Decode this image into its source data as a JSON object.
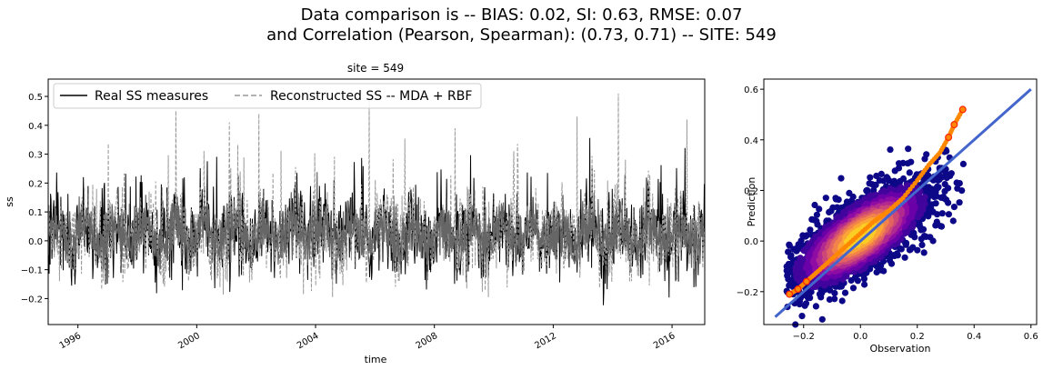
{
  "figure": {
    "suptitle_line1": "Data comparison is -- BIAS: 0.02, SI: 0.63, RMSE: 0.07",
    "suptitle_line2": "and Correlation (Pearson, Spearman): (0.73, 0.71) -- SITE: 549"
  },
  "chart_data": [
    {
      "type": "line",
      "title": "site = 549",
      "xlabel": "time",
      "ylabel": "ss",
      "xlim": [
        1995.0,
        2017.1
      ],
      "ylim": [
        -0.29,
        0.56
      ],
      "x_ticks": [
        1996,
        2000,
        2004,
        2008,
        2012,
        2016
      ],
      "x_tick_labels": [
        "1996",
        "2000",
        "2004",
        "2008",
        "2012",
        "2016"
      ],
      "y_ticks": [
        -0.2,
        -0.1,
        0.0,
        0.1,
        0.2,
        0.3,
        0.4,
        0.5
      ],
      "y_tick_labels": [
        "−0.2",
        "−0.1",
        "0.0",
        "0.1",
        "0.2",
        "0.3",
        "0.4",
        "0.5"
      ],
      "legend_position": "top-left",
      "grid": false,
      "series": [
        {
          "name": "Real SS measures",
          "color": "#000000",
          "style": "solid",
          "typical_range": [
            -0.15,
            0.3
          ],
          "extremes": {
            "min": -0.24,
            "max": 0.33
          }
        },
        {
          "name": "Reconstructed SS -- MDA + RBF",
          "color": "#999999",
          "style": "dashed",
          "typical_range": [
            -0.2,
            0.45
          ],
          "peaks": [
            {
              "x": 1999.3,
              "y": 0.45
            },
            {
              "x": 2001.1,
              "y": 0.41
            },
            {
              "x": 2002.1,
              "y": 0.44
            },
            {
              "x": 2005.8,
              "y": 0.5
            },
            {
              "x": 2008.7,
              "y": 0.39
            },
            {
              "x": 2012.8,
              "y": 0.43
            },
            {
              "x": 2014.2,
              "y": 0.51
            },
            {
              "x": 2016.5,
              "y": 0.42
            }
          ]
        }
      ]
    },
    {
      "type": "scatter",
      "title": "",
      "xlabel": "Observation",
      "ylabel": "Prediction",
      "xlim": [
        -0.34,
        0.62
      ],
      "ylim": [
        -0.33,
        0.64
      ],
      "x_ticks": [
        -0.2,
        0.0,
        0.2,
        0.4,
        0.6
      ],
      "x_tick_labels": [
        "−0.2",
        "0.0",
        "0.2",
        "0.4",
        "0.6"
      ],
      "y_ticks": [
        -0.2,
        0.0,
        0.2,
        0.4,
        0.6
      ],
      "y_tick_labels": [
        "−0.2",
        "0.0",
        "0.2",
        "0.4",
        "0.6"
      ],
      "colormap": "plasma (density)",
      "identity_line": {
        "x": [
          -0.3,
          0.6
        ],
        "y": [
          -0.3,
          0.6
        ],
        "color": "#4466cc"
      },
      "quantile_points": {
        "color": "#ff8800",
        "edge": "#ff2200",
        "x": [
          -0.25,
          -0.22,
          -0.19,
          -0.15,
          -0.1,
          -0.05,
          0.0,
          0.05,
          0.1,
          0.15,
          0.2,
          0.24,
          0.28,
          0.31,
          0.33,
          0.36
        ],
        "y": [
          -0.21,
          -0.19,
          -0.16,
          -0.12,
          -0.07,
          -0.02,
          0.03,
          0.08,
          0.12,
          0.17,
          0.24,
          0.3,
          0.35,
          0.41,
          0.46,
          0.52
        ]
      },
      "cloud": {
        "center": [
          0.0,
          0.02
        ],
        "spread": [
          0.12,
          0.1
        ],
        "correlation": 0.73
      }
    }
  ]
}
